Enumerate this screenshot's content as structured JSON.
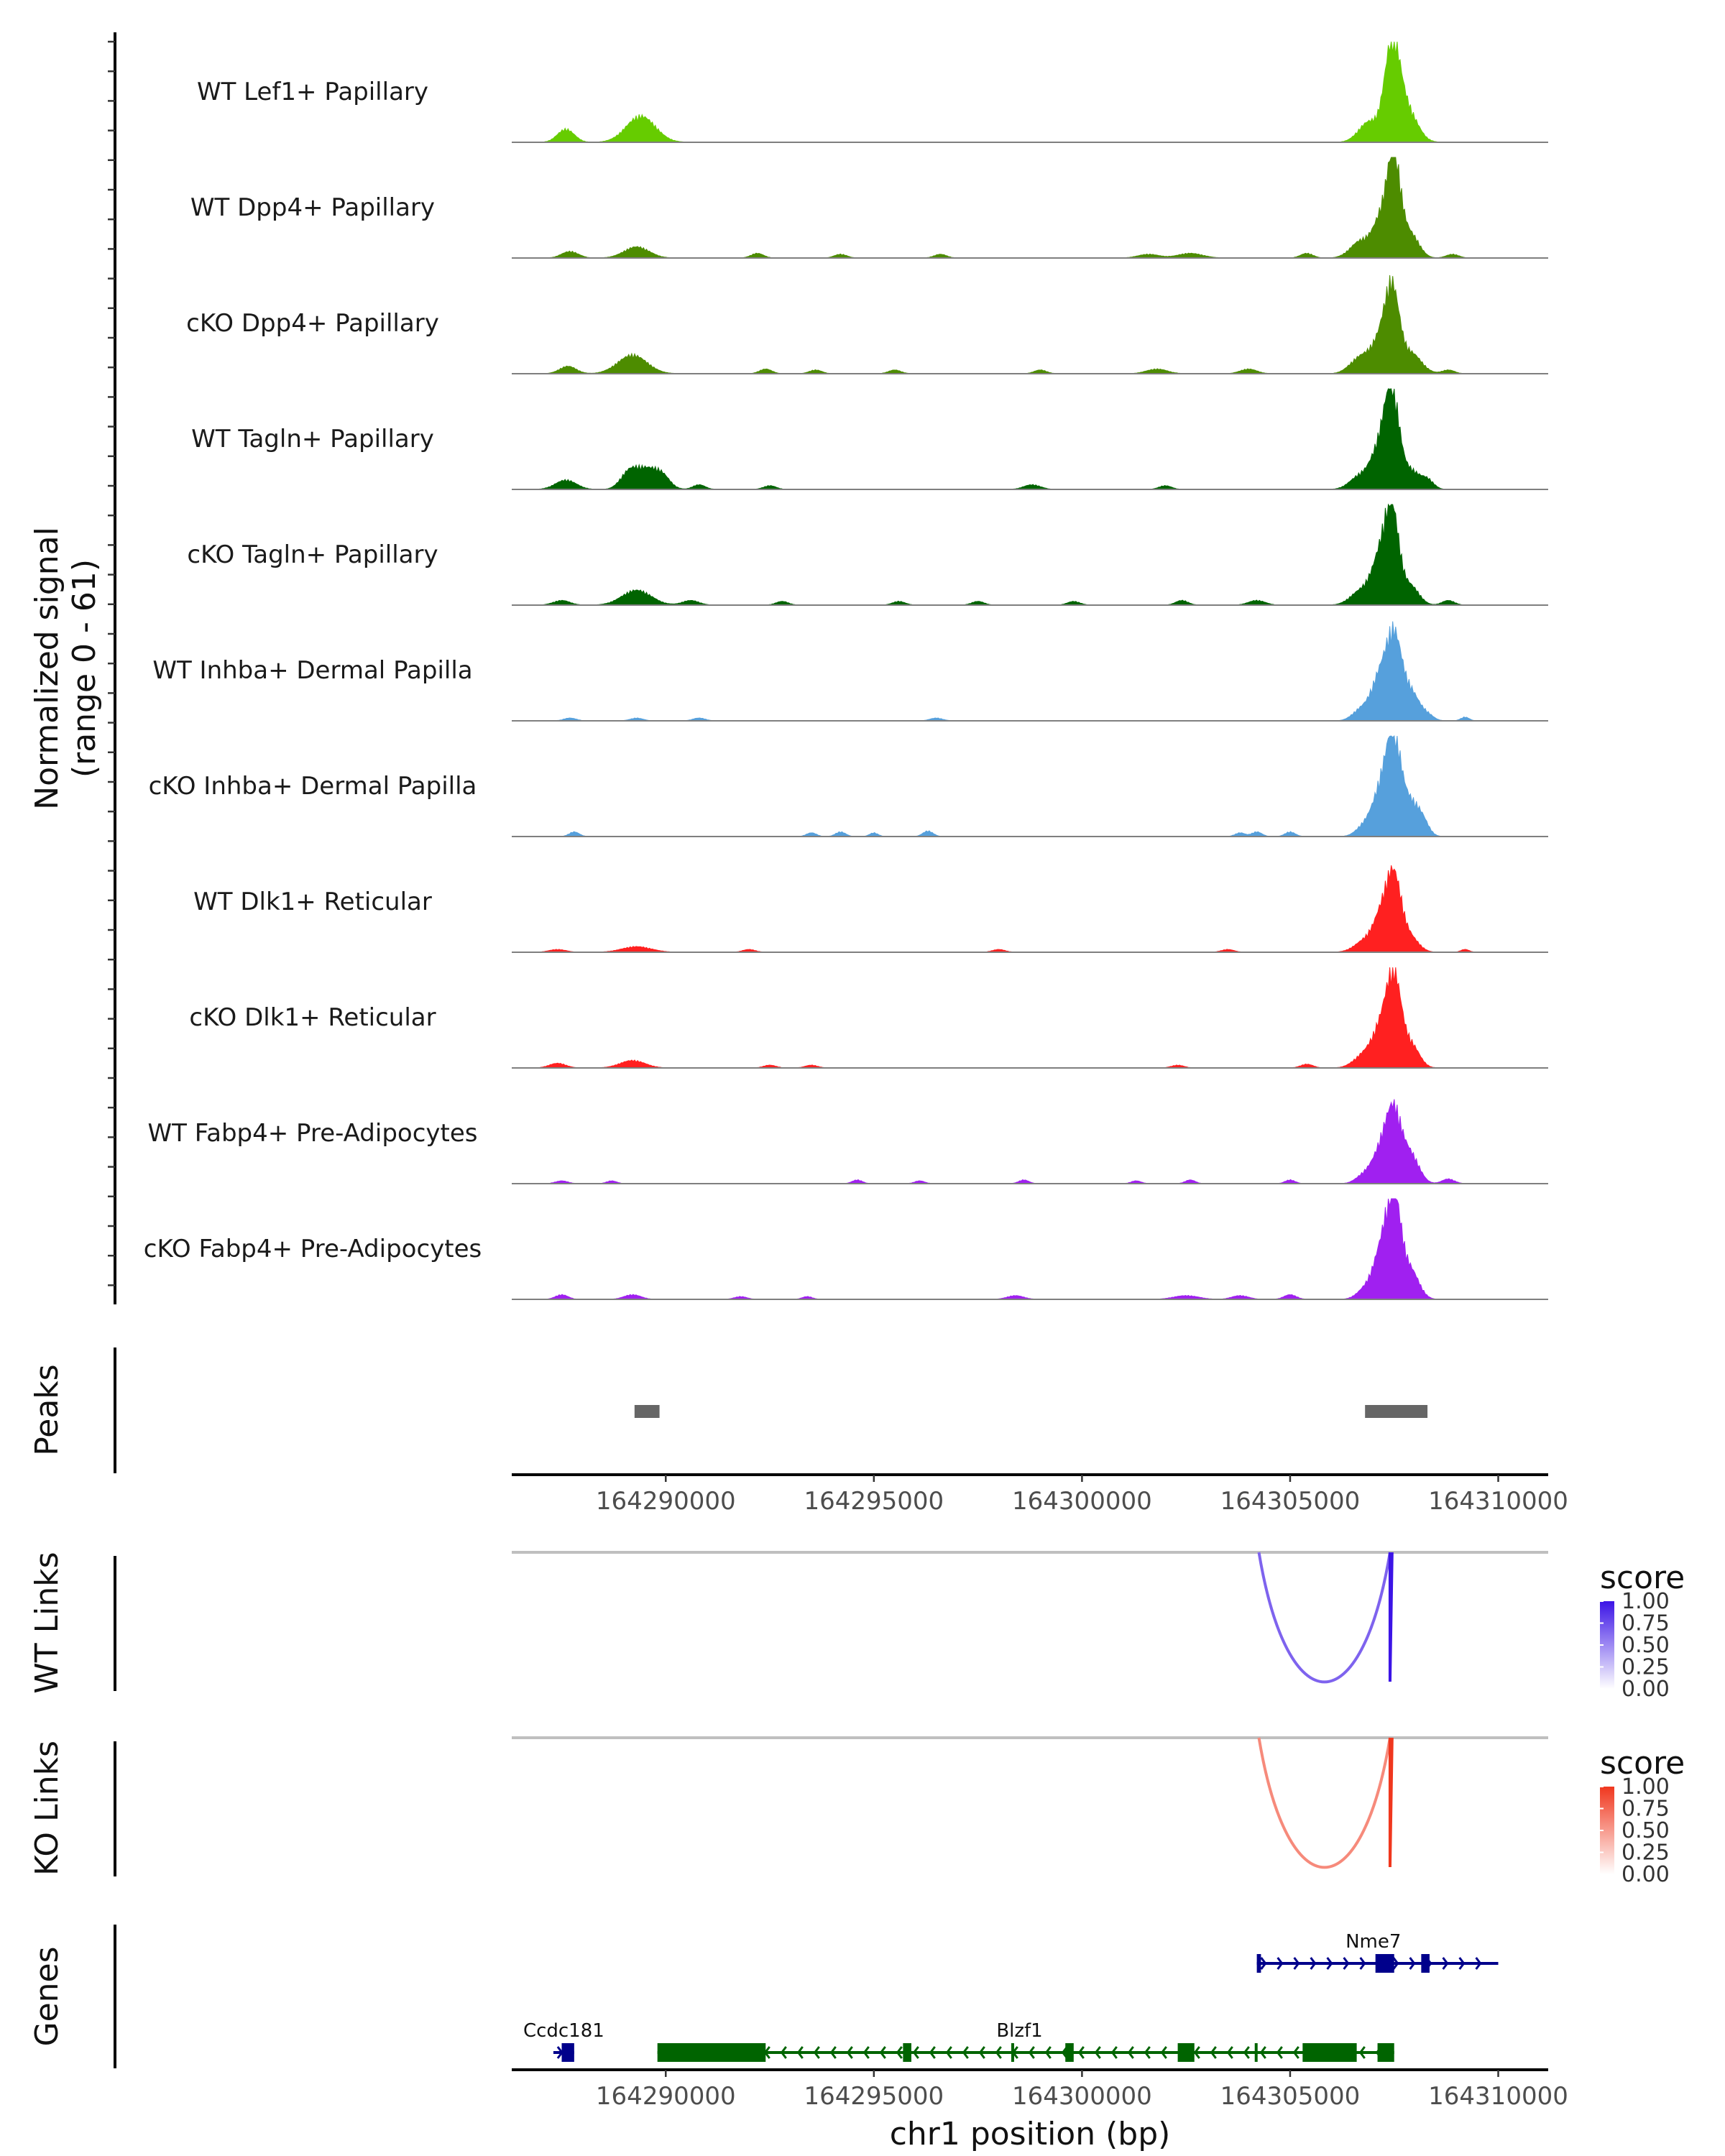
{
  "chart_data": {
    "type": "genome-browser-coverage",
    "region": {
      "chrom": "chr1",
      "start": 164286300,
      "end": 164311200
    },
    "coverage": {
      "ylabel": "Normalized signal",
      "ylabel_range": "(range 0 - 61)",
      "ylim": [
        0,
        61
      ],
      "tracks": [
        {
          "name": "WT Lef1+ Papillary",
          "color": "#66CC00",
          "peaks": [
            [
              164287600,
              0.14,
              200
            ],
            [
              164289400,
              0.28,
              350
            ],
            [
              164306900,
              0.22,
              250
            ],
            [
              164307450,
              1.0,
              180
            ],
            [
              164307800,
              0.35,
              250
            ]
          ]
        },
        {
          "name": "WT Dpp4+ Papillary",
          "color": "#4D8C00",
          "peaks": [
            [
              164287700,
              0.07,
              200
            ],
            [
              164289300,
              0.12,
              300
            ],
            [
              164292200,
              0.05,
              150
            ],
            [
              164294200,
              0.04,
              150
            ],
            [
              164296600,
              0.04,
              150
            ],
            [
              164301600,
              0.04,
              250
            ],
            [
              164302600,
              0.05,
              300
            ],
            [
              164305400,
              0.05,
              150
            ],
            [
              164306700,
              0.18,
              250
            ],
            [
              164307200,
              0.4,
              200
            ],
            [
              164307500,
              1.0,
              160
            ],
            [
              164307900,
              0.25,
              200
            ],
            [
              164308900,
              0.04,
              150
            ]
          ]
        },
        {
          "name": "cKO Dpp4+ Papillary",
          "color": "#4D8C00",
          "peaks": [
            [
              164287650,
              0.08,
              200
            ],
            [
              164289200,
              0.2,
              350
            ],
            [
              164292400,
              0.05,
              150
            ],
            [
              164293600,
              0.04,
              150
            ],
            [
              164295500,
              0.04,
              150
            ],
            [
              164299000,
              0.04,
              150
            ],
            [
              164301800,
              0.05,
              250
            ],
            [
              164304000,
              0.05,
              200
            ],
            [
              164306700,
              0.18,
              250
            ],
            [
              164307150,
              0.3,
              200
            ],
            [
              164307450,
              0.85,
              170
            ],
            [
              164307900,
              0.22,
              250
            ],
            [
              164308800,
              0.04,
              150
            ]
          ]
        },
        {
          "name": "WT Tagln+ Papillary",
          "color": "#006400",
          "peaks": [
            [
              164287600,
              0.1,
              250
            ],
            [
              164289100,
              0.16,
              200
            ],
            [
              164289500,
              0.2,
              250
            ],
            [
              164289900,
              0.14,
              200
            ],
            [
              164290800,
              0.05,
              150
            ],
            [
              164292500,
              0.04,
              150
            ],
            [
              164298800,
              0.05,
              200
            ],
            [
              164302000,
              0.04,
              150
            ],
            [
              164306700,
              0.15,
              250
            ],
            [
              164307150,
              0.4,
              200
            ],
            [
              164307450,
              1.0,
              170
            ],
            [
              164307900,
              0.2,
              200
            ],
            [
              164308300,
              0.1,
              150
            ]
          ]
        },
        {
          "name": "cKO Tagln+ Papillary",
          "color": "#006400",
          "peaks": [
            [
              164287500,
              0.05,
              200
            ],
            [
              164289300,
              0.16,
              350
            ],
            [
              164290600,
              0.05,
              200
            ],
            [
              164292800,
              0.04,
              150
            ],
            [
              164295600,
              0.04,
              150
            ],
            [
              164297500,
              0.04,
              150
            ],
            [
              164299800,
              0.04,
              150
            ],
            [
              164302400,
              0.05,
              150
            ],
            [
              164304200,
              0.05,
              200
            ],
            [
              164306700,
              0.15,
              250
            ],
            [
              164307150,
              0.45,
              200
            ],
            [
              164307450,
              0.95,
              170
            ],
            [
              164307900,
              0.2,
              200
            ],
            [
              164308800,
              0.05,
              150
            ]
          ]
        },
        {
          "name": "WT Inhba+ Dermal Papilla",
          "color": "#56A0DC",
          "peaks": [
            [
              164287700,
              0.03,
              150
            ],
            [
              164289300,
              0.03,
              150
            ],
            [
              164290800,
              0.03,
              150
            ],
            [
              164296500,
              0.03,
              150
            ],
            [
              164306700,
              0.12,
              200
            ],
            [
              164307150,
              0.45,
              200
            ],
            [
              164307500,
              0.85,
              180
            ],
            [
              164307900,
              0.3,
              200
            ],
            [
              164308300,
              0.06,
              150
            ],
            [
              164309200,
              0.04,
              100
            ]
          ]
        },
        {
          "name": "cKO Inhba+ Dermal Papilla",
          "color": "#56A0DC",
          "peaks": [
            [
              164287800,
              0.05,
              120
            ],
            [
              164293500,
              0.04,
              120
            ],
            [
              164294200,
              0.05,
              120
            ],
            [
              164295000,
              0.04,
              100
            ],
            [
              164296300,
              0.06,
              120
            ],
            [
              164303800,
              0.04,
              120
            ],
            [
              164304200,
              0.05,
              120
            ],
            [
              164305000,
              0.05,
              120
            ],
            [
              164306800,
              0.12,
              200
            ],
            [
              164307200,
              0.5,
              200
            ],
            [
              164307500,
              0.95,
              170
            ],
            [
              164307900,
              0.35,
              200
            ],
            [
              164308200,
              0.12,
              150
            ]
          ]
        },
        {
          "name": "WT Dlk1+ Reticular",
          "color": "#FF2020",
          "peaks": [
            [
              164287400,
              0.03,
              200
            ],
            [
              164289300,
              0.06,
              350
            ],
            [
              164292000,
              0.03,
              150
            ],
            [
              164298000,
              0.03,
              150
            ],
            [
              164303500,
              0.03,
              150
            ],
            [
              164306800,
              0.12,
              250
            ],
            [
              164307200,
              0.35,
              200
            ],
            [
              164307500,
              0.75,
              180
            ],
            [
              164307900,
              0.15,
              200
            ],
            [
              164309200,
              0.03,
              100
            ]
          ]
        },
        {
          "name": "cKO Dlk1+ Reticular",
          "color": "#FF2020",
          "peaks": [
            [
              164287400,
              0.05,
              200
            ],
            [
              164289200,
              0.08,
              300
            ],
            [
              164292500,
              0.03,
              150
            ],
            [
              164293500,
              0.03,
              150
            ],
            [
              164302300,
              0.03,
              150
            ],
            [
              164305400,
              0.04,
              150
            ],
            [
              164306800,
              0.15,
              250
            ],
            [
              164307200,
              0.4,
              200
            ],
            [
              164307500,
              0.9,
              170
            ],
            [
              164307900,
              0.25,
              200
            ]
          ]
        },
        {
          "name": "WT Fabp4+ Pre-Adipocytes",
          "color": "#A020F0",
          "peaks": [
            [
              164287500,
              0.03,
              150
            ],
            [
              164288700,
              0.03,
              120
            ],
            [
              164294600,
              0.04,
              120
            ],
            [
              164296100,
              0.03,
              120
            ],
            [
              164298600,
              0.04,
              120
            ],
            [
              164301300,
              0.03,
              120
            ],
            [
              164302600,
              0.04,
              120
            ],
            [
              164305000,
              0.04,
              120
            ],
            [
              164306800,
              0.1,
              200
            ],
            [
              164307200,
              0.35,
              200
            ],
            [
              164307500,
              0.7,
              180
            ],
            [
              164307900,
              0.3,
              200
            ],
            [
              164308800,
              0.05,
              150
            ]
          ]
        },
        {
          "name": "cKO Fabp4+ Pre-Adipocytes",
          "color": "#A020F0",
          "peaks": [
            [
              164287500,
              0.05,
              150
            ],
            [
              164289200,
              0.05,
              200
            ],
            [
              164291800,
              0.03,
              150
            ],
            [
              164293400,
              0.03,
              120
            ],
            [
              164298400,
              0.04,
              200
            ],
            [
              164302500,
              0.04,
              300
            ],
            [
              164303800,
              0.04,
              200
            ],
            [
              164305000,
              0.05,
              150
            ],
            [
              164306800,
              0.1,
              200
            ],
            [
              164307200,
              0.5,
              200
            ],
            [
              164307500,
              1.0,
              170
            ],
            [
              164307900,
              0.3,
              200
            ]
          ]
        }
      ]
    },
    "peaks_track": {
      "label": "Peaks",
      "color": "#666666",
      "intervals": [
        [
          164289250,
          164289850
        ],
        [
          164306800,
          164308300
        ]
      ]
    },
    "x_axis": {
      "ticks": [
        164290000,
        164295000,
        164300000,
        164305000,
        164310000
      ],
      "tick_labels": [
        "164290000",
        "164295000",
        "164300000",
        "164305000",
        "164310000"
      ],
      "label": "chr1 position (bp)"
    },
    "links": [
      {
        "label": "WT Links",
        "legend_title": "score",
        "legend_ticks": [
          "1.00",
          "0.75",
          "0.50",
          "0.25",
          "0.00"
        ],
        "color_high": "#3C14E6",
        "arcs": [
          {
            "start": 164304250,
            "end": 164307400,
            "score": 0.55
          },
          {
            "start": 164307400,
            "end": 164307450,
            "score": 1.0
          }
        ]
      },
      {
        "label": "KO Links",
        "legend_title": "score",
        "legend_ticks": [
          "1.00",
          "0.75",
          "0.50",
          "0.25",
          "0.00"
        ],
        "color_high": "#F0371E",
        "arcs": [
          {
            "start": 164304250,
            "end": 164307400,
            "score": 0.45
          },
          {
            "start": 164307400,
            "end": 164307450,
            "score": 1.0
          }
        ]
      }
    ],
    "genes": {
      "label": "Genes",
      "items": [
        {
          "name": "Nme7",
          "strand": "+",
          "color": "#00008B",
          "start": 164304200,
          "end": 164310000,
          "row": 0,
          "exons": [
            [
              164304200,
              164304300
            ],
            [
              164307050,
              164307500
            ],
            [
              164308150,
              164308350
            ]
          ]
        },
        {
          "name": "Ccdc181",
          "strand": "+",
          "color": "#00008B",
          "start": 164287300,
          "end": 164287800,
          "row": 1,
          "exons": [
            [
              164287500,
              164287800
            ]
          ]
        },
        {
          "name": "Blzf1",
          "strand": "-",
          "color": "#006400",
          "start": 164289800,
          "end": 164307500,
          "row": 1,
          "exons": [
            [
              164289800,
              164292400
            ],
            [
              164295700,
              164295900
            ],
            [
              164298300,
              164298350
            ],
            [
              164299600,
              164299800
            ],
            [
              164302300,
              164302700
            ],
            [
              164304150,
              164304200
            ],
            [
              164305300,
              164306600
            ],
            [
              164307100,
              164307500
            ]
          ]
        }
      ]
    }
  }
}
